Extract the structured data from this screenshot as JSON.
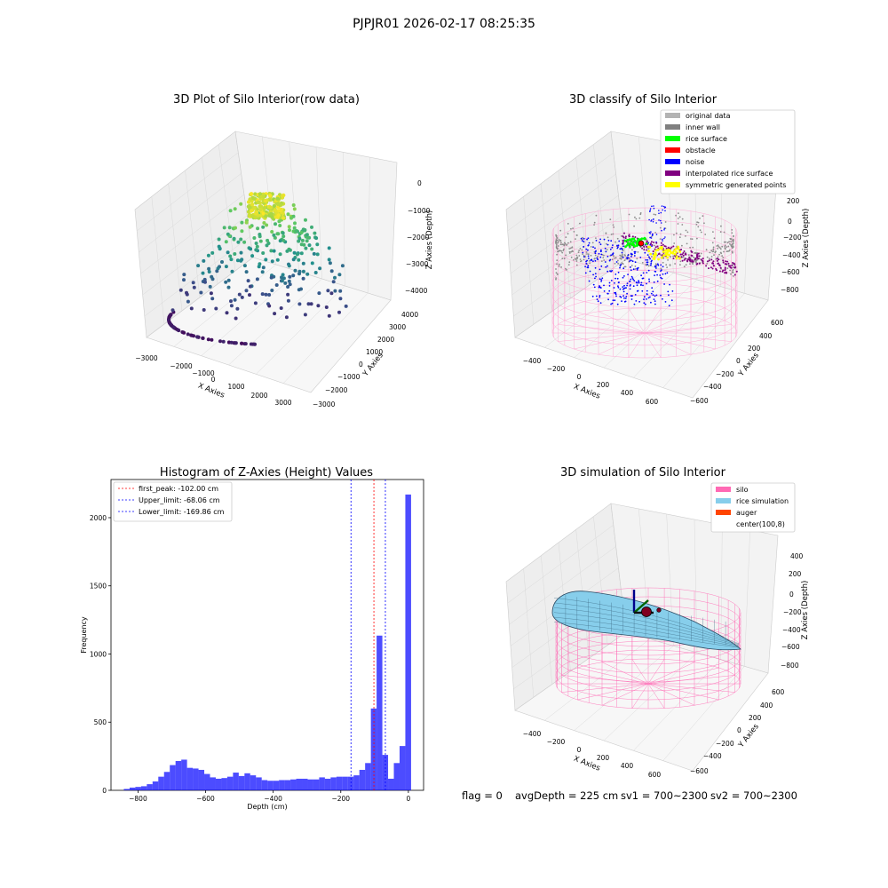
{
  "suptitle": "PJPJR01 2026-02-17 08:25:35",
  "panels": {
    "raw": {
      "title": "3D Plot of Silo Interior(row data)",
      "xlabel": "X Axies",
      "ylabel": "Y Axies",
      "zlabel": "Z Axies (Depth)",
      "xticks": [
        "−3000",
        "−2000",
        "−1000",
        "0",
        "1000",
        "2000",
        "3000"
      ],
      "yticks": [
        "4000",
        "3000",
        "2000",
        "1000",
        "0",
        "−1000",
        "−2000",
        "−3000"
      ],
      "zticks": [
        "0",
        "−1000",
        "−2000",
        "−3000",
        "−4000"
      ]
    },
    "classify": {
      "title": "3D classify of Silo Interior",
      "xlabel": "X Axies",
      "ylabel": "Y Axies",
      "zlabel": "Z Axies (Depth)",
      "xticks": [
        "−400",
        "−200",
        "0",
        "200",
        "400",
        "600"
      ],
      "yticks": [
        "600",
        "400",
        "200",
        "0",
        "−200",
        "−400",
        "−600"
      ],
      "zticks": [
        "200",
        "0",
        "−200",
        "−400",
        "−600",
        "−800"
      ],
      "legend": [
        {
          "label": "original data",
          "color": "#b3b3b3"
        },
        {
          "label": "inner wall",
          "color": "#808080"
        },
        {
          "label": "rice surface",
          "color": "#00ff00"
        },
        {
          "label": "obstacle",
          "color": "#ff0000"
        },
        {
          "label": "noise",
          "color": "#0000ff"
        },
        {
          "label": "interpolated rice surface",
          "color": "#800080"
        },
        {
          "label": "symmetric generated points",
          "color": "#ffff00"
        }
      ]
    },
    "sim": {
      "title": "3D simulation of Silo Interior",
      "xlabel": "X Axies",
      "ylabel": "Y Axies",
      "zlabel": "Z Axies (Depth)",
      "xticks": [
        "−400",
        "−200",
        "0",
        "200",
        "400",
        "600"
      ],
      "yticks": [
        "600",
        "400",
        "200",
        "0",
        "−200",
        "−400",
        "−600"
      ],
      "zticks": [
        "400",
        "200",
        "0",
        "−200",
        "−400",
        "−600",
        "−800"
      ],
      "legend": [
        {
          "label": "silo",
          "color": "#ff69b4"
        },
        {
          "label": "rice simulation",
          "color": "#87ceeb"
        },
        {
          "label": "auger",
          "color": "#ff4500"
        },
        {
          "label": "center(100,8)",
          "color": ""
        }
      ]
    }
  },
  "footer": {
    "flag": "flag = 0",
    "avg": "avgDepth = 225 cm",
    "sv1": "sv1 = 700~2300",
    "sv2": "sv2 = 700~2300"
  },
  "chart_data": [
    {
      "type": "scatter",
      "title": "3D Plot of Silo Interior(row data)",
      "xlabel": "X Axies",
      "ylabel": "Y Axies",
      "zlabel": "Z Axies (Depth)",
      "xlim": [
        -3000,
        3000
      ],
      "ylim": [
        -3000,
        4000
      ],
      "zlim": [
        -4500,
        0
      ],
      "colormap": "viridis"
    },
    {
      "type": "scatter",
      "title": "3D classify of Silo Interior",
      "xlabel": "X Axies",
      "ylabel": "Y Axies",
      "zlabel": "Z Axies (Depth)",
      "xlim": [
        -500,
        700
      ],
      "ylim": [
        -600,
        600
      ],
      "zlim": [
        -900,
        300
      ]
    },
    {
      "type": "bar",
      "title": "Histogram of Z-Axies (Height) Values",
      "xlabel": "Depth (cm)",
      "ylabel": "Frequency",
      "xlim": [
        -880,
        45
      ],
      "ylim": [
        0,
        2280
      ],
      "xticks": [
        -800,
        -600,
        -400,
        -200,
        0
      ],
      "yticks": [
        0,
        500,
        1000,
        1500,
        2000
      ],
      "bin_width": 17,
      "bin_starts": [
        -842,
        -825,
        -808,
        -791,
        -774,
        -757,
        -740,
        -723,
        -706,
        -689,
        -672,
        -655,
        -638,
        -621,
        -604,
        -587,
        -570,
        -553,
        -536,
        -519,
        -502,
        -485,
        -468,
        -451,
        -434,
        -417,
        -400,
        -383,
        -366,
        -349,
        -332,
        -315,
        -298,
        -281,
        -264,
        -247,
        -230,
        -213,
        -196,
        -179,
        -162,
        -145,
        -128,
        -111,
        -94,
        -77,
        -60,
        -43,
        -26,
        -9
      ],
      "values": [
        10,
        20,
        25,
        30,
        45,
        65,
        100,
        135,
        185,
        215,
        225,
        165,
        160,
        150,
        120,
        95,
        85,
        90,
        100,
        130,
        105,
        125,
        110,
        95,
        75,
        70,
        70,
        75,
        75,
        80,
        85,
        85,
        80,
        80,
        95,
        85,
        95,
        100,
        100,
        100,
        110,
        150,
        200,
        600,
        1135,
        260,
        85,
        200,
        325,
        2170
      ],
      "lines": [
        {
          "label": "first_peak: -102.00 cm",
          "x": -102.0,
          "color": "#ff0000"
        },
        {
          "label": "Upper_limit: -68.06 cm",
          "x": -68.06,
          "color": "#0000ff"
        },
        {
          "label": "Lower_limit: -169.86 cm",
          "x": -169.86,
          "color": "#0000ff"
        }
      ],
      "color": "#0000ff"
    },
    {
      "type": "other",
      "title": "3D simulation of Silo Interior",
      "xlabel": "X Axies",
      "ylabel": "Y Axies",
      "zlabel": "Z Axies (Depth)",
      "xlim": [
        -500,
        700
      ],
      "ylim": [
        -600,
        600
      ],
      "zlim": [
        -900,
        450
      ]
    }
  ]
}
